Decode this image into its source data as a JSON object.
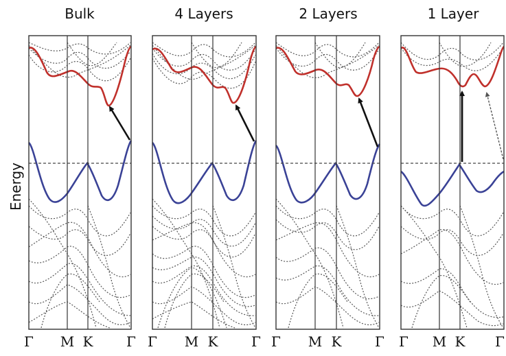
{
  "y_axis_label": "Energy",
  "colors": {
    "conduction_band": "#c0302b",
    "valence_band": "#3a4296",
    "frame": "#333333",
    "dotted_bands": "#555555"
  },
  "panels": [
    {
      "title": "Bulk",
      "ticks": [
        "Γ",
        "M",
        "K",
        "Γ"
      ],
      "gap": "indirect"
    },
    {
      "title": "4 Layers",
      "ticks": [
        "Γ",
        "M",
        "K",
        "Γ"
      ],
      "gap": "indirect"
    },
    {
      "title": "2 Layers",
      "ticks": [
        "Γ",
        "M",
        "K",
        "Γ"
      ],
      "gap": "indirect"
    },
    {
      "title": "1 Layer",
      "ticks": [
        "Γ",
        "M",
        "K",
        "Γ"
      ],
      "gap": "direct"
    }
  ]
}
